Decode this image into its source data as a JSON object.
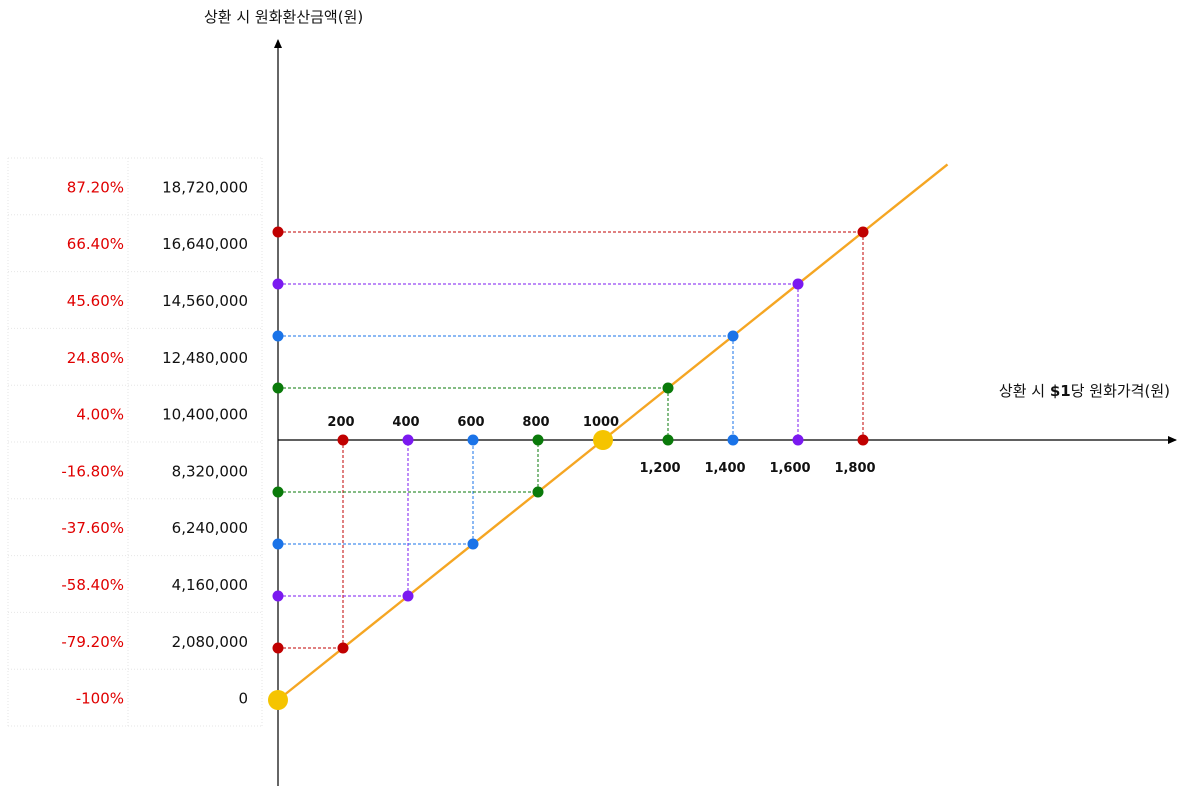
{
  "colors": {
    "line": "#F5A623",
    "anchor": "#F5C400",
    "red": "#C00000",
    "purple": "#7B19F0",
    "blue": "#1A73E8",
    "green": "#0A7A0A",
    "pct": "#E00000",
    "axis": "#000000",
    "grid": "#E6E6E6"
  },
  "chart_data": {
    "type": "line",
    "title": "",
    "xlabel_parts": [
      "상환 시 ",
      "$1",
      "당 원화가격(원)"
    ],
    "ylabel": "상환 시 원화환산금액(원)",
    "origin": {
      "x": 0,
      "y": 0
    },
    "break_even": {
      "x": 1000,
      "y": 10400000
    },
    "xlim": [
      0,
      2000
    ],
    "ylim": [
      0,
      20800000
    ],
    "x_tick_labels_above": [
      "200",
      "400",
      "600",
      "800",
      "1000"
    ],
    "x_tick_labels_below": [
      "1,200",
      "1,400",
      "1,600",
      "1,800"
    ],
    "rows": [
      {
        "value": "18,720,000",
        "pct": "87.20%"
      },
      {
        "value": "16,640,000",
        "pct": "66.40%"
      },
      {
        "value": "14,560,000",
        "pct": "45.60%"
      },
      {
        "value": "12,480,000",
        "pct": "24.80%"
      },
      {
        "value": "10,400,000",
        "pct": "4.00%"
      },
      {
        "value": "8,320,000",
        "pct": "-16.80%"
      },
      {
        "value": "6,240,000",
        "pct": "-37.60%"
      },
      {
        "value": "4,160,000",
        "pct": "-58.40%"
      },
      {
        "value": "2,080,000",
        "pct": "-79.20%"
      },
      {
        "value": "0",
        "pct": "-100%"
      }
    ],
    "points": [
      {
        "x": 200,
        "y": 2080000,
        "color": "red"
      },
      {
        "x": 400,
        "y": 4160000,
        "color": "purple"
      },
      {
        "x": 600,
        "y": 6240000,
        "color": "blue"
      },
      {
        "x": 800,
        "y": 8320000,
        "color": "green"
      },
      {
        "x": 1200,
        "y": 12480000,
        "color": "green"
      },
      {
        "x": 1400,
        "y": 14560000,
        "color": "blue"
      },
      {
        "x": 1600,
        "y": 16640000,
        "color": "purple"
      },
      {
        "x": 1800,
        "y": 18720000,
        "color": "red"
      }
    ],
    "line_end": {
      "x": 2060,
      "y": 21424000
    }
  }
}
